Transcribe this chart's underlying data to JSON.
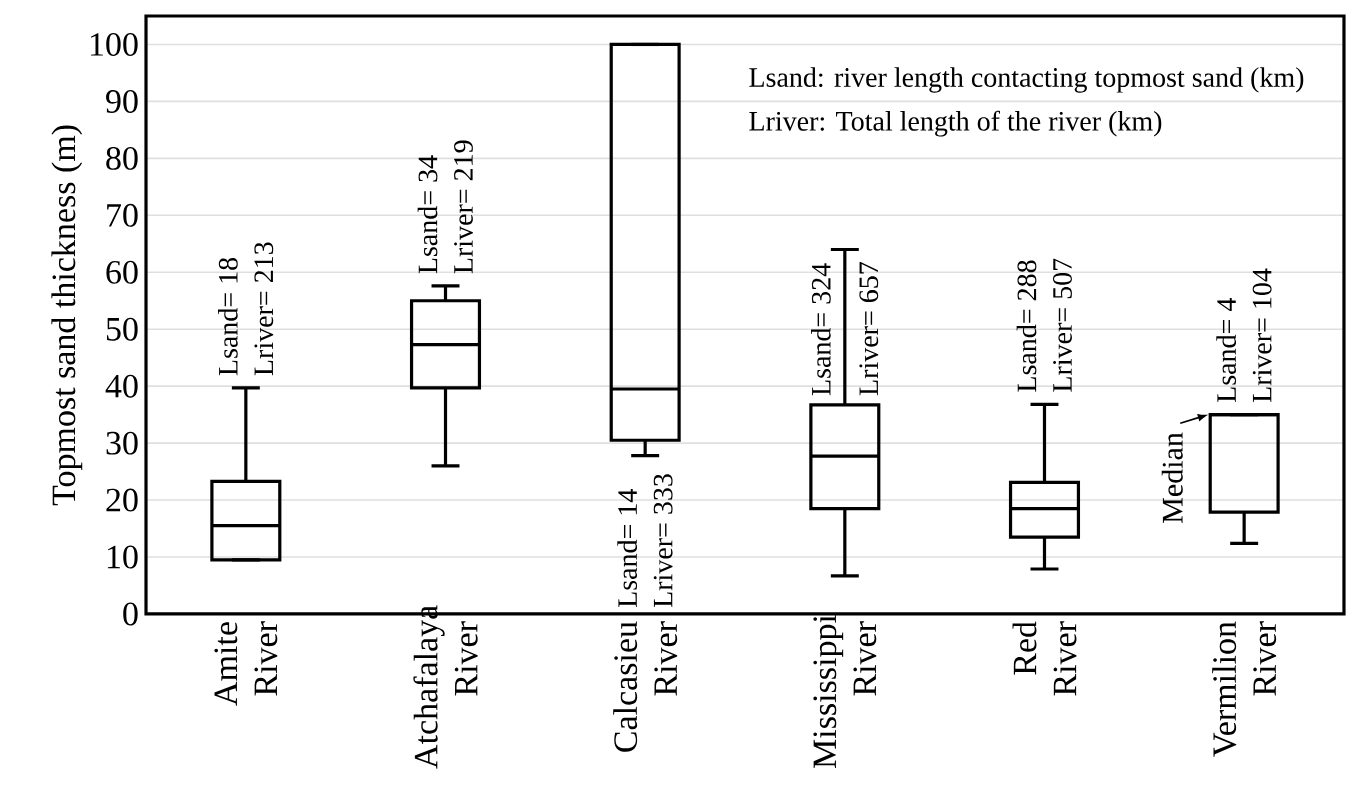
{
  "chart_data": {
    "type": "box",
    "ylabel": "Topmost sand thickness (m)",
    "categories": [
      "Amite River",
      "Atchafalaya River",
      "Calcasieu River",
      "Mississippi River",
      "Red River",
      "Vermilion River"
    ],
    "boxes": [
      {
        "low": 9.5,
        "q1": 9.5,
        "median": 15.5,
        "q3": 23.3,
        "high": 39.7
      },
      {
        "low": 26,
        "q1": 39.7,
        "median": 47.3,
        "q3": 55,
        "high": 57.6
      },
      {
        "low": 27.8,
        "q1": 30.5,
        "median": 39.5,
        "q3": 100,
        "high": 100
      },
      {
        "low": 6.7,
        "q1": 18.5,
        "median": 27.7,
        "q3": 36.7,
        "high": 64
      },
      {
        "low": 7.9,
        "q1": 13.5,
        "median": 18.5,
        "q3": 23.1,
        "high": 36.8
      },
      {
        "low": 12.4,
        "q1": 17.9,
        "median": 35,
        "q3": 35,
        "high": 35
      }
    ],
    "ylim": [
      0,
      105
    ],
    "yticks": [
      0,
      10,
      20,
      30,
      40,
      50,
      60,
      70,
      80,
      90,
      100
    ],
    "grid": "y",
    "annotations": [
      "Lsand: river length contacting topmost sand (km)",
      "Lriver: Total length of the river (km)",
      "Lsand= 18",
      "Lriver= 213",
      "Lsand= 34",
      "Lriver= 219",
      "Lsand= 14",
      "Lriver= 333",
      "Lsand= 324",
      "Lriver= 657",
      "Lsand= 288",
      "Lriver= 507",
      "Lsand= 4",
      "Lriver= 104",
      "Median"
    ]
  }
}
